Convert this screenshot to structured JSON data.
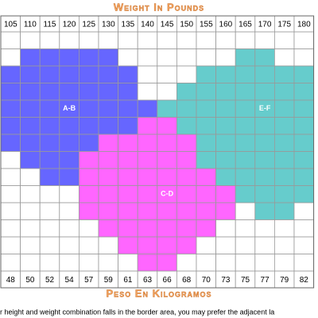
{
  "chart_data": {
    "type": "grid",
    "title": "Weight In Pounds",
    "pounds": [
      "105",
      "110",
      "115",
      "120",
      "125",
      "130",
      "135",
      "140",
      "145",
      "150",
      "155",
      "160",
      "165",
      "170",
      "175",
      "180"
    ],
    "kilograms": [
      "48",
      "50",
      "52",
      "54",
      "57",
      "59",
      "61",
      "63",
      "66",
      "68",
      "70",
      "73",
      "75",
      "77",
      "79",
      "82"
    ],
    "x_label": "Peso En Kilogramos",
    "regions": [
      {
        "name": "A-B",
        "color": "#6666ff"
      },
      {
        "name": "C-D",
        "color": "#ff66ff"
      },
      {
        "name": "E-F",
        "color": "#66cccc"
      }
    ],
    "note": "r height and weight combination falls in the border area, you may prefer the adjacent la"
  }
}
